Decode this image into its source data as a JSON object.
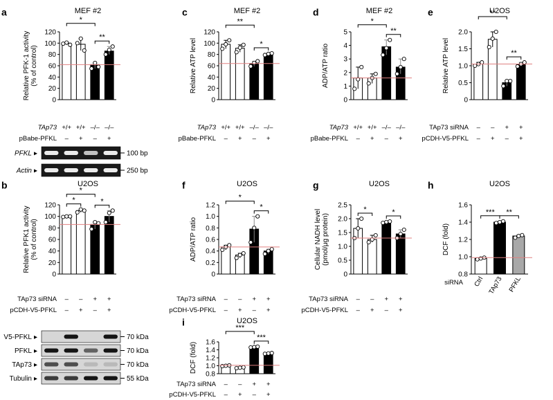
{
  "colors": {
    "white_bar": "#ffffff",
    "black_bar": "#000000",
    "gray_bar": "#a8a8a8",
    "ref_line": "#e08080",
    "dot_fill": "#ffffff"
  },
  "chart_data": [
    {
      "panel": "a",
      "type": "bar",
      "title": "MEF #2",
      "ylabel": [
        "Relative PFK-1 activity",
        "(% of control)"
      ],
      "ylim": [
        0,
        120
      ],
      "yticks": [
        0,
        20,
        40,
        60,
        80,
        100,
        120
      ],
      "values": [
        100,
        98,
        62,
        86
      ],
      "fills": [
        "white",
        "white",
        "black",
        "black"
      ],
      "points": [
        [
          99,
          101,
          97
        ],
        [
          100,
          108,
          87
        ],
        [
          55,
          65,
          58
        ],
        [
          80,
          88,
          94
        ]
      ],
      "ref": 62,
      "conditions": [
        {
          "label": "TAp73",
          "italic": true,
          "values": [
            "+/+",
            "+/+",
            "–/–",
            "–/–"
          ]
        },
        {
          "label": "pBabe-PFKL",
          "italic": false,
          "values": [
            "–",
            "+",
            "–",
            "+"
          ]
        }
      ],
      "brackets": [
        {
          "from": 0,
          "to": 2,
          "text": "*"
        },
        {
          "from": 2,
          "to": 3,
          "text": "**"
        }
      ]
    },
    {
      "panel": "b",
      "type": "bar",
      "title": "U2OS",
      "ylabel": [
        "Relative PFK1 activity",
        "(% of control)"
      ],
      "ylim": [
        0,
        120
      ],
      "yticks": [
        0,
        20,
        40,
        60,
        80,
        100,
        120
      ],
      "values": [
        100,
        110,
        86,
        100
      ],
      "fills": [
        "white",
        "white",
        "black",
        "black"
      ],
      "points": [
        [
          99,
          100,
          100
        ],
        [
          107,
          112,
          110
        ],
        [
          78,
          90,
          88
        ],
        [
          90,
          106,
          110
        ]
      ],
      "ref": 86,
      "conditions": [
        {
          "label": "TAp73 siRNA",
          "italic": false,
          "values": [
            "–",
            "–",
            "+",
            "+"
          ]
        },
        {
          "label": "pCDH-V5-PFKL",
          "italic": false,
          "values": [
            "–",
            "+",
            "–",
            "+"
          ]
        }
      ],
      "brackets": [
        {
          "from": 0,
          "to": 1,
          "text": "*"
        },
        {
          "from": 0,
          "to": 2,
          "text": "*"
        },
        {
          "from": 2,
          "to": 3,
          "text": "*"
        }
      ]
    },
    {
      "panel": "c",
      "type": "bar",
      "title": "MEF #2",
      "ylabel": [
        "Relative ATP level"
      ],
      "ylim": [
        0,
        120
      ],
      "yticks": [
        0,
        20,
        40,
        60,
        80,
        100,
        120
      ],
      "values": [
        98,
        91,
        64,
        81
      ],
      "fills": [
        "white",
        "white",
        "black",
        "black"
      ],
      "points": [
        [
          90,
          98,
          105
        ],
        [
          84,
          92,
          97
        ],
        [
          59,
          65,
          68
        ],
        [
          79,
          81,
          82
        ]
      ],
      "ref": 64,
      "conditions": [
        {
          "label": "TAp73",
          "italic": true,
          "values": [
            "+/+",
            "+/+",
            "–/–",
            "–/–"
          ]
        },
        {
          "label": "pBabe-PFKL",
          "italic": false,
          "values": [
            "–",
            "+",
            "–",
            "+"
          ]
        }
      ],
      "brackets": [
        {
          "from": 0,
          "to": 2,
          "text": "**"
        },
        {
          "from": 2,
          "to": 3,
          "text": "*"
        }
      ]
    },
    {
      "panel": "d",
      "type": "bar",
      "title": "MEF #2",
      "ylabel": [
        "ADP/ATP ratio"
      ],
      "ylim": [
        0,
        5
      ],
      "yticks": [
        0,
        1,
        2,
        3,
        4,
        5
      ],
      "values": [
        1.6,
        1.6,
        3.9,
        2.4
      ],
      "fills": [
        "white",
        "white",
        "black",
        "black"
      ],
      "points": [
        [
          0.8,
          1.5,
          2.4
        ],
        [
          1.2,
          1.6,
          1.9
        ],
        [
          3.3,
          3.8,
          4.4
        ],
        [
          1.9,
          2.4,
          3.0
        ]
      ],
      "ref": 1.6,
      "conditions": [
        {
          "label": "TAp73",
          "italic": true,
          "values": [
            "+/+",
            "+/+",
            "–/–",
            "–/–"
          ]
        },
        {
          "label": "pBabe-PFKL",
          "italic": false,
          "values": [
            "–",
            "+",
            "–",
            "+"
          ]
        }
      ],
      "brackets": [
        {
          "from": 0,
          "to": 2,
          "text": "*"
        },
        {
          "from": 2,
          "to": 3,
          "text": "**"
        }
      ]
    },
    {
      "panel": "e",
      "type": "bar",
      "title": "U2OS",
      "ylabel": [
        "Relative ATP level"
      ],
      "ylim": [
        0,
        2.0
      ],
      "yticks": [
        "0",
        "0.5",
        "1.0",
        "1.5",
        "2.0"
      ],
      "values": [
        1.05,
        1.78,
        0.5,
        1.05
      ],
      "fills": [
        "white",
        "white",
        "black",
        "black"
      ],
      "points": [
        [
          1.0,
          1.05,
          1.1
        ],
        [
          1.55,
          1.8,
          2.0
        ],
        [
          0.4,
          0.55,
          0.55
        ],
        [
          0.98,
          1.05,
          1.1
        ]
      ],
      "ref": 1.05,
      "conditions": [
        {
          "label": "TAp73 siRNA",
          "italic": false,
          "values": [
            "–",
            "–",
            "+",
            "+"
          ]
        },
        {
          "label": "pCDH-V5-PFKL",
          "italic": false,
          "values": [
            "–",
            "+",
            "–",
            "+"
          ]
        }
      ],
      "brackets": [
        {
          "from": 0,
          "to": 2,
          "text": "**"
        },
        {
          "from": 2,
          "to": 3,
          "text": "**"
        }
      ]
    },
    {
      "panel": "f",
      "type": "bar",
      "title": "U2OS",
      "ylabel": [
        "ADP/ATP ratio"
      ],
      "ylim": [
        0,
        1.2
      ],
      "yticks": [
        "0",
        "0.2",
        "0.4",
        "0.6",
        "0.8",
        "1.0",
        "1.2"
      ],
      "values": [
        0.47,
        0.33,
        0.78,
        0.4
      ],
      "fills": [
        "white",
        "white",
        "black",
        "black"
      ],
      "points": [
        [
          0.42,
          0.47,
          0.5
        ],
        [
          0.28,
          0.33,
          0.36
        ],
        [
          0.55,
          0.8,
          1.0
        ],
        [
          0.35,
          0.4,
          0.43
        ]
      ],
      "ref": 0.47,
      "conditions": [
        {
          "label": "TAp73 siRNA",
          "italic": false,
          "values": [
            "–",
            "–",
            "+",
            "+"
          ]
        },
        {
          "label": "pCDH-V5-PFKL",
          "italic": false,
          "values": [
            "–",
            "+",
            "–",
            "+"
          ]
        }
      ],
      "brackets": [
        {
          "from": 0,
          "to": 2,
          "text": "*"
        },
        {
          "from": 2,
          "to": 3,
          "text": "*"
        }
      ]
    },
    {
      "panel": "g",
      "type": "bar",
      "title": "U2OS",
      "ylabel": [
        "Cellular NADH level",
        "(pmol/μg protein)"
      ],
      "ylim": [
        0,
        2.5
      ],
      "yticks": [
        "0",
        "0.5",
        "1.0",
        "1.5",
        "2.0",
        "2.5"
      ],
      "values": [
        1.65,
        1.25,
        1.87,
        1.45
      ],
      "fills": [
        "white",
        "white",
        "black",
        "black"
      ],
      "points": [
        [
          1.3,
          1.65,
          2.0
        ],
        [
          1.15,
          1.25,
          1.4
        ],
        [
          1.85,
          1.88,
          1.9
        ],
        [
          1.3,
          1.45,
          1.6
        ]
      ],
      "ref": 1.3,
      "conditions": [
        {
          "label": "TAp73 siRNA",
          "italic": false,
          "values": [
            "–",
            "–",
            "+",
            "+"
          ]
        },
        {
          "label": "pCDH-V5-PFKL",
          "italic": false,
          "values": [
            "–",
            "+",
            "–",
            "+"
          ]
        }
      ],
      "brackets": [
        {
          "from": 0,
          "to": 1,
          "text": "*"
        },
        {
          "from": 2,
          "to": 3,
          "text": "*"
        }
      ]
    },
    {
      "panel": "h",
      "type": "bar",
      "title": "U2OS",
      "ylabel": [
        "DCF (fold)"
      ],
      "ylim": [
        0.8,
        1.6
      ],
      "yticks": [
        "0.8",
        "1.0",
        "1.2",
        "1.4",
        "1.6"
      ],
      "categories": [
        "Ctrl",
        "TAp73",
        "PFKL"
      ],
      "category_axis_label": "siRNA",
      "values": [
        0.98,
        1.4,
        1.24
      ],
      "fills": [
        "white",
        "black",
        "gray"
      ],
      "points": [
        [
          0.97,
          0.98,
          0.99
        ],
        [
          1.39,
          1.4,
          1.41
        ],
        [
          1.22,
          1.24,
          1.25
        ]
      ],
      "ref": 0.99,
      "brackets": [
        {
          "from": 0,
          "to": 1,
          "text": "***"
        },
        {
          "from": 1,
          "to": 2,
          "text": "**"
        }
      ]
    },
    {
      "panel": "i",
      "type": "bar",
      "title": "U2OS",
      "ylabel": [
        "DCF (fold)"
      ],
      "ylim": [
        0.8,
        1.6
      ],
      "yticks": [
        "0.8",
        "1.0",
        "1.2",
        "1.4",
        "1.6"
      ],
      "values": [
        1.0,
        0.95,
        1.47,
        1.31
      ],
      "fills": [
        "white",
        "white",
        "black",
        "black"
      ],
      "points": [
        [
          0.99,
          1.0,
          1.01
        ],
        [
          0.94,
          0.95,
          0.96
        ],
        [
          1.46,
          1.47,
          1.48
        ],
        [
          1.3,
          1.31,
          1.32
        ]
      ],
      "ref": 1.01,
      "conditions": [
        {
          "label": "TAp73 siRNA",
          "italic": false,
          "values": [
            "–",
            "–",
            "+",
            "+"
          ]
        },
        {
          "label": "pCDH-V5-PFKL",
          "italic": false,
          "values": [
            "–",
            "+",
            "–",
            "+"
          ]
        }
      ],
      "brackets": [
        {
          "from": 0,
          "to": 2,
          "text": "***"
        },
        {
          "from": 2,
          "to": 3,
          "text": "***"
        }
      ]
    }
  ],
  "gels": {
    "a": {
      "rows": [
        {
          "label": "PFKL",
          "italic": true,
          "size": "100 bp",
          "bands": [
            1,
            1,
            0.8,
            1
          ]
        },
        {
          "label": "Actin",
          "italic": true,
          "size": "250 bp",
          "bands": [
            1,
            1,
            1,
            1
          ]
        }
      ]
    },
    "b": {
      "rows": [
        {
          "label": "V5-PFKL",
          "italic": false,
          "size": "70 kDa",
          "bands": [
            0,
            1,
            0,
            1
          ]
        },
        {
          "label": "PFKL",
          "italic": false,
          "size": "70 kDa",
          "bands": [
            1,
            1,
            0.6,
            1
          ]
        },
        {
          "label": "TAp73",
          "italic": false,
          "size": "70 kDa",
          "bands": [
            0.7,
            0.7,
            0.15,
            0.15
          ]
        },
        {
          "label": "Tubulin",
          "italic": false,
          "size": "55 kDa",
          "bands": [
            0.8,
            0.8,
            1,
            1
          ]
        }
      ]
    }
  }
}
